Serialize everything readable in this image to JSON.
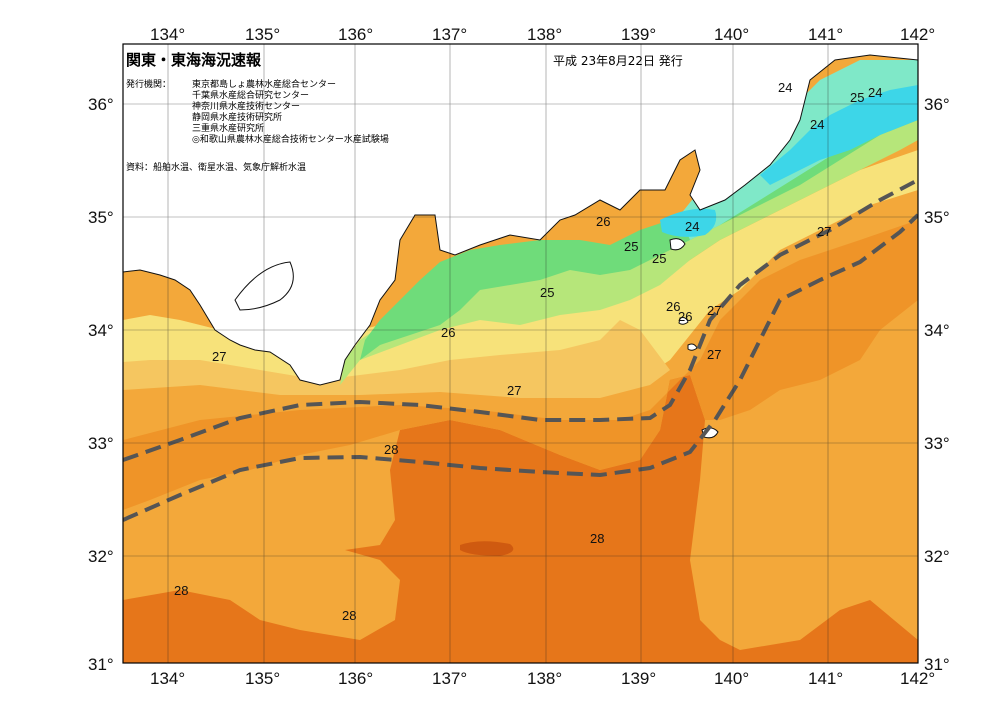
{
  "map": {
    "title": "関東・東海海況速報",
    "date": "平成 23年8月22日 発行",
    "issuers_label": "発行機関：",
    "issuers": [
      "東京都島しょ農林水産総合センター",
      "千葉県水産総合研究センター",
      "神奈川県水産技術センター",
      "静岡県水産技術研究所",
      "三重県水産研究所",
      "◎和歌山県農林水産総合技術センター水産試験場"
    ],
    "source": "資料：船舶水温、衛星水温、気象庁解析水温",
    "lon_labels": [
      "134°",
      "135°",
      "136°",
      "137°",
      "138°",
      "139°",
      "140°",
      "141°",
      "142°"
    ],
    "lat_labels": [
      "36°",
      "35°",
      "34°",
      "33°",
      "32°",
      "31°"
    ],
    "contour_labels": [
      "24",
      "24",
      "25",
      "24",
      "24",
      "26",
      "25",
      "25",
      "27",
      "26",
      "27",
      "27",
      "25",
      "26",
      "27",
      "26",
      "27",
      "28",
      "28",
      "28",
      "28"
    ],
    "colors": {
      "t23": "#3dd6e8",
      "t24": "#7fe8c8",
      "t25": "#6fdc7a",
      "t25b": "#b6e67a",
      "t26": "#f7e27a",
      "t26b": "#f5c660",
      "t27": "#f3a83a",
      "t27b": "#ef9428",
      "t28": "#e6761a",
      "t29": "#cf5a10",
      "kuroshio": "#555555"
    }
  }
}
